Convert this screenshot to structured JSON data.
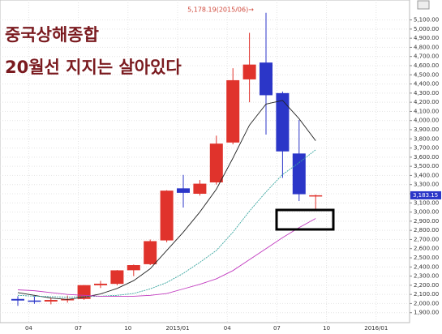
{
  "chart_data": {
    "type": "candlestick",
    "title": "중국상해종합",
    "subtitle": "20월선 지지는 살아있다",
    "annotation": "5,178.19(2015/06)→",
    "last_price_label": "3,183.15",
    "categories": [
      null,
      "04",
      null,
      null,
      "07",
      null,
      null,
      "10",
      null,
      null,
      "2015/01",
      null,
      null,
      "04",
      null,
      null,
      "07",
      null,
      null,
      "10",
      null,
      null,
      "2016/01"
    ],
    "open": [
      2050,
      2033,
      2022,
      2038,
      2050,
      2200,
      2215,
      2364,
      2430,
      2690,
      3259,
      3200,
      3324,
      3760,
      4450,
      4634,
      4300,
      3640,
      3174,
      null,
      null,
      null,
      null
    ],
    "high": [
      2080,
      2080,
      2064,
      2087,
      2202,
      2248,
      2366,
      2426,
      2700,
      3239,
      3406,
      3350,
      3835,
      4572,
      4959,
      5178,
      4317,
      4006,
      3190,
      null,
      null,
      null,
      null
    ],
    "low": [
      1975,
      1997,
      1991,
      2010,
      2040,
      2170,
      2200,
      2300,
      2420,
      2670,
      3049,
      3180,
      3300,
      3740,
      4200,
      3847,
      3373,
      3120,
      3035,
      null,
      null,
      null,
      null
    ],
    "close": [
      2033,
      2026,
      2039,
      2048,
      2201,
      2217,
      2363,
      2420,
      2682,
      3234,
      3210,
      3310,
      3748,
      4441,
      4612,
      4277,
      3663,
      3195,
      3183,
      null,
      null,
      null,
      null
    ],
    "up_color": "#e0332c",
    "down_color": "#2b36c8",
    "moving_averages": [
      {
        "color": "#222222",
        "dash": false,
        "values": [
          2120,
          2090,
          2060,
          2045,
          2070,
          2105,
          2165,
          2250,
          2380,
          2580,
          2780,
          3000,
          3250,
          3590,
          3950,
          4180,
          4220,
          4020,
          3780,
          null,
          null,
          null,
          null
        ]
      },
      {
        "color": "#3aa6a0",
        "dash": true,
        "values": [
          2090,
          2080,
          2075,
          2070,
          2075,
          2080,
          2090,
          2110,
          2160,
          2230,
          2330,
          2450,
          2580,
          2780,
          3010,
          3220,
          3410,
          3540,
          3680,
          null,
          null,
          null,
          null
        ]
      },
      {
        "color": "#c23cc0",
        "dash": false,
        "values": [
          2150,
          2140,
          2120,
          2100,
          2090,
          2080,
          2080,
          2080,
          2090,
          2110,
          2160,
          2210,
          2270,
          2360,
          2480,
          2600,
          2720,
          2830,
          2930,
          null,
          null,
          null,
          null
        ]
      }
    ],
    "ylim": [
      1800,
      5300
    ],
    "yticks": [
      {
        "value": 1900,
        "label": "1,900.00"
      },
      {
        "value": 2000,
        "label": "2,000.00"
      },
      {
        "value": 2100,
        "label": "2,100.00"
      },
      {
        "value": 2200,
        "label": "2,200.00"
      },
      {
        "value": 2300,
        "label": "2,300.00"
      },
      {
        "value": 2400,
        "label": "2,400.00"
      },
      {
        "value": 2500,
        "label": "2,500.00"
      },
      {
        "value": 2600,
        "label": "2,600.00"
      },
      {
        "value": 2700,
        "label": "2,700.00"
      },
      {
        "value": 2800,
        "label": "2,800.00"
      },
      {
        "value": 2900,
        "label": "2,900.00"
      },
      {
        "value": 3000,
        "label": "3,000.00"
      },
      {
        "value": 3100,
        "label": "3,100.00"
      },
      {
        "value": 3200,
        "label": "3,200.00"
      },
      {
        "value": 3300,
        "label": "3,300.00"
      },
      {
        "value": 3400,
        "label": "3,400.00"
      },
      {
        "value": 3500,
        "label": "3,500.00"
      },
      {
        "value": 3600,
        "label": "3,600.00"
      },
      {
        "value": 3700,
        "label": "3,700.00"
      },
      {
        "value": 3800,
        "label": "3,800.00"
      },
      {
        "value": 3900,
        "label": "3,900.00"
      },
      {
        "value": 4000,
        "label": "4,000.00"
      },
      {
        "value": 4100,
        "label": "4,100.00"
      },
      {
        "value": 4200,
        "label": "4,200.00"
      },
      {
        "value": 4300,
        "label": "4,300.00"
      },
      {
        "value": 4400,
        "label": "4,400.00"
      },
      {
        "value": 4500,
        "label": "4,500.00"
      },
      {
        "value": 4600,
        "label": "4,600.00"
      },
      {
        "value": 4700,
        "label": "4,700.00"
      },
      {
        "value": 4800,
        "label": "4,800.00"
      },
      {
        "value": 4900,
        "label": "4,900.00"
      },
      {
        "value": 5000,
        "label": "5,000.00"
      },
      {
        "value": 5100,
        "label": "5,100.00"
      }
    ],
    "grid": true
  }
}
